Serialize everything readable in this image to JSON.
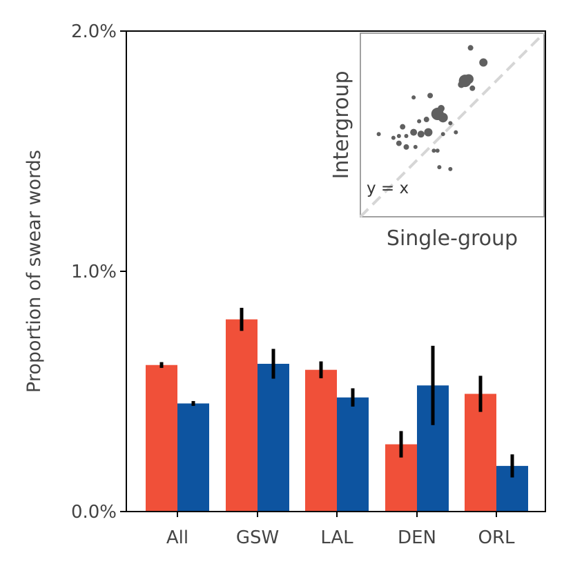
{
  "chart_data": [
    {
      "type": "bar",
      "ylabel": "Proportion of swear words",
      "ylim": [
        0,
        2.0
      ],
      "yticks": [
        "0.0%",
        "1.0%",
        "2.0%"
      ],
      "ytick_values": [
        0,
        1.0,
        2.0
      ],
      "categories": [
        "All",
        "GSW",
        "LAL",
        "DEN",
        "ORL"
      ],
      "series": [
        {
          "color": "#f05039",
          "values": [
            0.61,
            0.8,
            0.59,
            0.28,
            0.49
          ],
          "error": [
            0.012,
            0.048,
            0.035,
            0.055,
            0.075
          ]
        },
        {
          "color": "#0d54a0",
          "values": [
            0.45,
            0.615,
            0.475,
            0.525,
            0.19
          ],
          "error": [
            0.01,
            0.062,
            0.038,
            0.165,
            0.048
          ]
        }
      ],
      "error_color": "#000000",
      "grid": false
    },
    {
      "type": "scatter",
      "xlabel": "Single-group",
      "ylabel": "Intergroup",
      "annotation": "y = x",
      "placement": "top-right inset",
      "point_color": "#606060",
      "diagonal_color": "#d6d6d6",
      "xlim": [
        0,
        1
      ],
      "ylim": [
        0,
        1
      ],
      "points": [
        {
          "x": 0.6,
          "y": 0.92,
          "s": 4
        },
        {
          "x": 0.67,
          "y": 0.84,
          "s": 6
        },
        {
          "x": 0.57,
          "y": 0.74,
          "s": 9
        },
        {
          "x": 0.59,
          "y": 0.75,
          "s": 7
        },
        {
          "x": 0.55,
          "y": 0.72,
          "s": 5
        },
        {
          "x": 0.61,
          "y": 0.7,
          "s": 4
        },
        {
          "x": 0.38,
          "y": 0.66,
          "s": 4
        },
        {
          "x": 0.29,
          "y": 0.65,
          "s": 3
        },
        {
          "x": 0.44,
          "y": 0.59,
          "s": 5
        },
        {
          "x": 0.42,
          "y": 0.56,
          "s": 9
        },
        {
          "x": 0.45,
          "y": 0.54,
          "s": 7
        },
        {
          "x": 0.36,
          "y": 0.53,
          "s": 4
        },
        {
          "x": 0.32,
          "y": 0.52,
          "s": 3
        },
        {
          "x": 0.23,
          "y": 0.49,
          "s": 4
        },
        {
          "x": 0.29,
          "y": 0.46,
          "s": 5
        },
        {
          "x": 0.33,
          "y": 0.45,
          "s": 5
        },
        {
          "x": 0.25,
          "y": 0.44,
          "s": 3
        },
        {
          "x": 0.21,
          "y": 0.44,
          "s": 3
        },
        {
          "x": 0.18,
          "y": 0.43,
          "s": 3
        },
        {
          "x": 0.1,
          "y": 0.45,
          "s": 3
        },
        {
          "x": 0.21,
          "y": 0.4,
          "s": 4
        },
        {
          "x": 0.25,
          "y": 0.38,
          "s": 4
        },
        {
          "x": 0.3,
          "y": 0.38,
          "s": 3
        },
        {
          "x": 0.37,
          "y": 0.46,
          "s": 6
        },
        {
          "x": 0.45,
          "y": 0.45,
          "s": 3
        },
        {
          "x": 0.49,
          "y": 0.51,
          "s": 3
        },
        {
          "x": 0.52,
          "y": 0.46,
          "s": 3
        },
        {
          "x": 0.42,
          "y": 0.36,
          "s": 3
        },
        {
          "x": 0.4,
          "y": 0.36,
          "s": 3
        },
        {
          "x": 0.49,
          "y": 0.26,
          "s": 3
        },
        {
          "x": 0.43,
          "y": 0.27,
          "s": 3
        }
      ]
    }
  ]
}
